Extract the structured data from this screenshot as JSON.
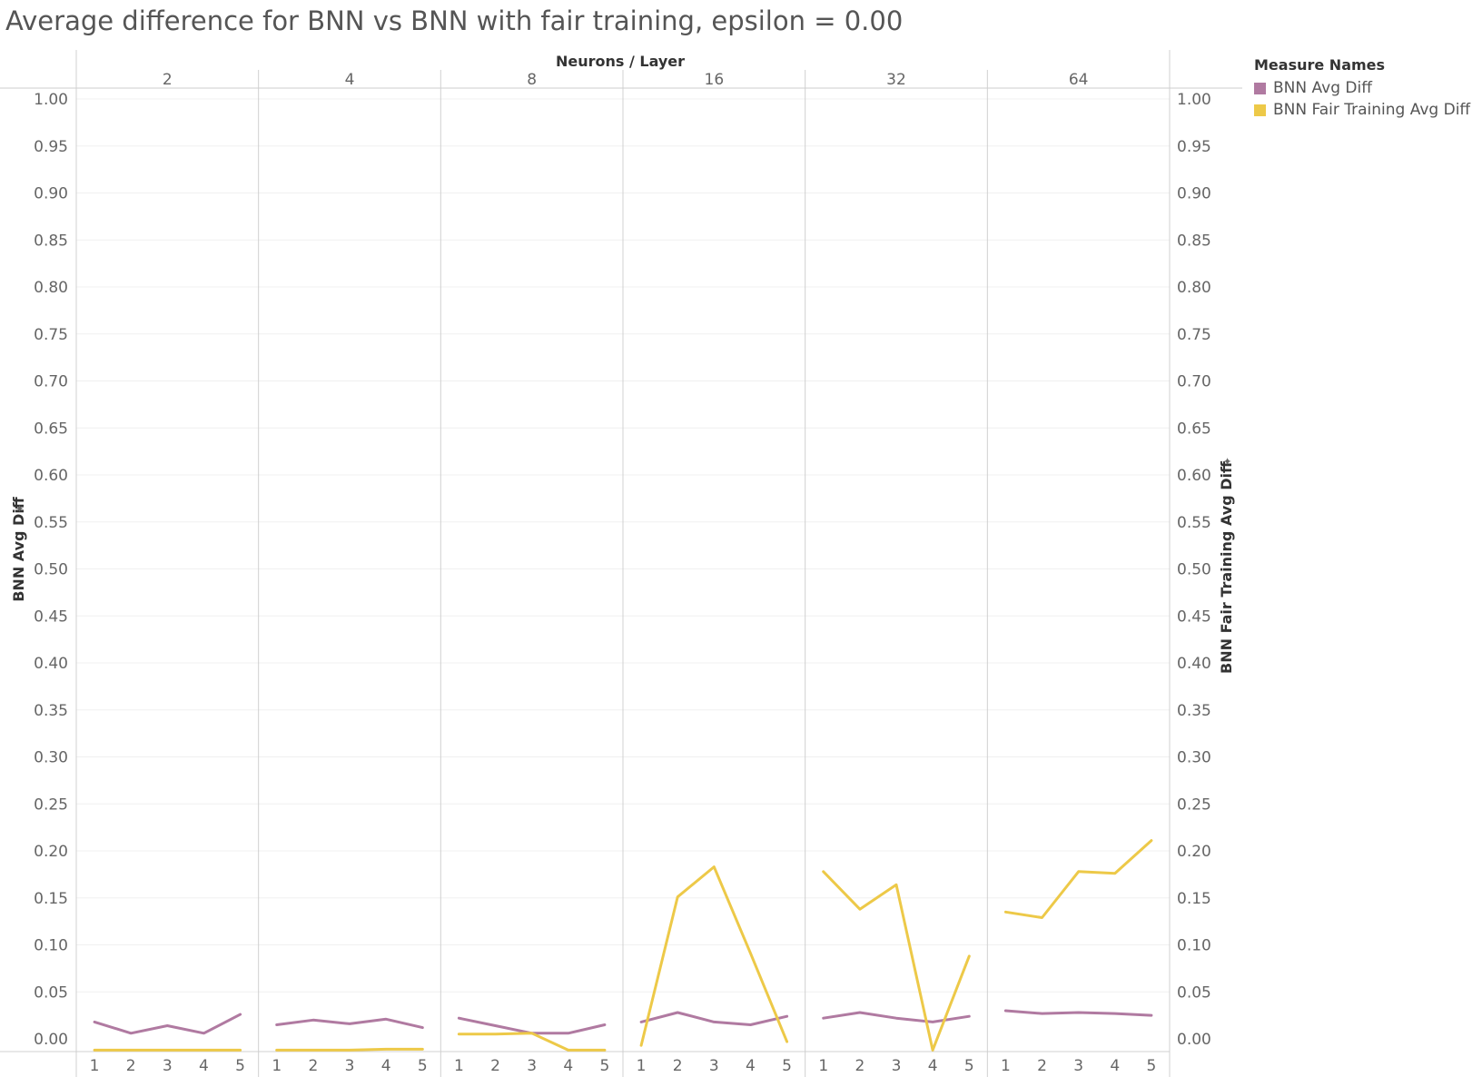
{
  "chart_data": {
    "type": "line",
    "title": "Average difference for BNN vs BNN with fair training, epsilon = 0.00",
    "column_header": "Neurons / Layer",
    "panels": [
      "2",
      "4",
      "8",
      "16",
      "32",
      "64"
    ],
    "x_categories": [
      "1",
      "2",
      "3",
      "4",
      "5"
    ],
    "y_left_label": "BNN Avg Diff",
    "y_right_label": "BNN Fair Training Avg Diff",
    "y_ticks": [
      "0.00",
      "0.05",
      "0.10",
      "0.15",
      "0.20",
      "0.25",
      "0.30",
      "0.35",
      "0.40",
      "0.45",
      "0.50",
      "0.55",
      "0.60",
      "0.65",
      "0.70",
      "0.75",
      "0.80",
      "0.85",
      "0.90",
      "0.95",
      "1.00"
    ],
    "ylim": [
      0,
      1
    ],
    "grid": true,
    "legend_title": "Measure Names",
    "legend_position": "top-right",
    "series": [
      {
        "name": "BNN Avg Diff",
        "color": "#b07aa1",
        "axis": "left",
        "panels": [
          [
            0.018,
            0.006,
            0.014,
            0.006,
            0.026
          ],
          [
            0.015,
            0.02,
            0.016,
            0.021,
            0.012
          ],
          [
            0.022,
            0.014,
            0.006,
            0.006,
            0.015
          ],
          [
            0.018,
            0.028,
            0.018,
            0.015,
            0.024
          ],
          [
            0.022,
            0.028,
            0.022,
            0.018,
            0.024
          ],
          [
            0.03,
            0.027,
            0.028,
            0.027,
            0.025
          ]
        ]
      },
      {
        "name": "BNN Fair Training Avg Diff",
        "color": "#edc948",
        "axis": "right",
        "panels": [
          [
            -0.012,
            -0.012,
            -0.012,
            -0.012,
            -0.012
          ],
          [
            -0.012,
            -0.012,
            -0.012,
            -0.011,
            -0.011
          ],
          [
            0.005,
            0.005,
            0.006,
            -0.012,
            -0.012
          ],
          [
            -0.007,
            0.151,
            0.183,
            0.091,
            -0.003
          ],
          [
            0.178,
            0.138,
            0.164,
            -0.012,
            0.088
          ],
          [
            0.135,
            0.129,
            0.178,
            0.176,
            0.211
          ]
        ]
      }
    ]
  }
}
